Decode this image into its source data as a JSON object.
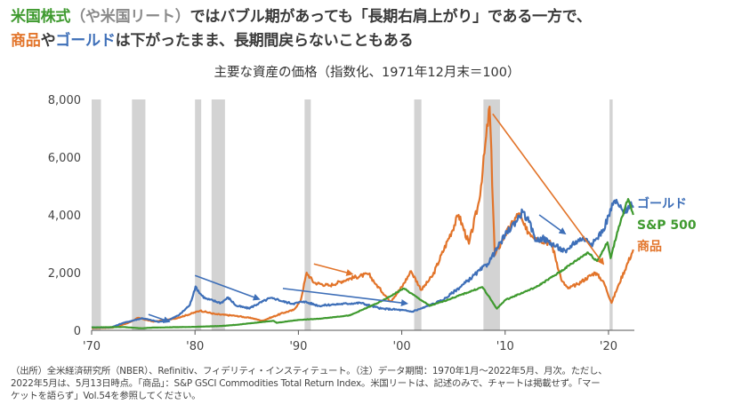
{
  "headline": {
    "line1_part1": "米国株式",
    "line1_part2": "（や米国リート）",
    "line1_part3": "ではバブル期があっても「長期右肩上がり」である一方で、",
    "line2_part1": "商品",
    "line2_part2": "や",
    "line2_part3": "ゴールド",
    "line2_part4": "は下がったまま、長期間戻らないこともある"
  },
  "colors": {
    "gold": "#3e6fb8",
    "sp500": "#3f9a2f",
    "commodity": "#e2742a",
    "recession": "#d3d3d3",
    "axis": "#555555"
  },
  "footnote": {
    "line1": "（出所）全米経済研究所（NBER）、Refinitiv、フィデリティ・インスティテュート。（注）データ期間：1970年1月～2022年5月、月次。ただし、",
    "line2": "2022年5月は、5月13日時点。「商品」：S&P GSCI Commodities Total Return Index。米国リートは、記述のみで、チャートは掲載せず。「マー",
    "line3": "ケットを語らず」Vol.54を参照してください。"
  },
  "chart_data": {
    "type": "line",
    "title": "主要な資産の価格（指数化、1971年12月末＝100）",
    "xlabel": "",
    "ylabel": "",
    "xlim": [
      1970,
      2022.5
    ],
    "ylim": [
      0,
      8000
    ],
    "y_ticks": [
      0,
      2000,
      4000,
      6000,
      8000
    ],
    "y_tick_labels": [
      "0",
      "2,000",
      "4,000",
      "6,000",
      "8,000"
    ],
    "x_ticks": [
      1970,
      1980,
      1990,
      2000,
      2010,
      2020
    ],
    "x_tick_labels": [
      "'70",
      "'80",
      "'90",
      "'00",
      "'10",
      "'20"
    ],
    "grid": false,
    "recessions": [
      [
        1970.0,
        1970.9
      ],
      [
        1973.9,
        1975.2
      ],
      [
        1980.0,
        1980.6
      ],
      [
        1981.6,
        1982.9
      ],
      [
        1990.6,
        1991.2
      ],
      [
        2001.2,
        2001.9
      ],
      [
        2007.9,
        2009.5
      ],
      [
        2020.1,
        2020.4
      ]
    ],
    "series": [
      {
        "name": "ゴールド",
        "key": "gold",
        "x": [
          1970,
          1971.9,
          1973,
          1974.9,
          1976.5,
          1977.5,
          1978.5,
          1979.5,
          1980.05,
          1980.5,
          1981,
          1982.5,
          1983.2,
          1984,
          1985.2,
          1986,
          1987.2,
          1987.9,
          1988.5,
          1989.5,
          1990.5,
          1992,
          1993.5,
          1996,
          1998,
          1999.5,
          2001,
          2002,
          2004,
          2006,
          2008.3,
          2009,
          2010,
          2011.7,
          2012.3,
          2013,
          2013.6,
          2015.9,
          2016.5,
          2017.5,
          2018.5,
          2019.5,
          2020.6,
          2021,
          2021.5,
          2022.1,
          2022.4
        ],
        "values": [
          100,
          100,
          250,
          420,
          290,
          360,
          540,
          880,
          1520,
          1270,
          1100,
          950,
          1140,
          850,
          760,
          900,
          1110,
          1080,
          1000,
          920,
          1000,
          850,
          900,
          950,
          750,
          720,
          650,
          770,
          1050,
          1600,
          2300,
          2700,
          3300,
          4100,
          3750,
          3100,
          3200,
          2700,
          3000,
          3200,
          3000,
          3500,
          4500,
          4300,
          4050,
          4400,
          4250
        ]
      },
      {
        "name": "S&P 500",
        "key": "sp500",
        "x": [
          1970,
          1973,
          1974.8,
          1976,
          1980,
          1982.5,
          1984,
          1987.6,
          1987.9,
          1990,
          1992,
          1995,
          1998,
          2000.2,
          2002.7,
          2004,
          2007.8,
          2009.2,
          2010,
          2013,
          2015,
          2018,
          2018.9,
          2019.9,
          2020.2,
          2021,
          2021.9,
          2022.4
        ],
        "values": [
          100,
          115,
          70,
          95,
          120,
          150,
          190,
          330,
          260,
          360,
          400,
          520,
          1000,
          1450,
          850,
          1000,
          1500,
          750,
          1050,
          1500,
          1950,
          2700,
          2400,
          3050,
          2500,
          3600,
          4550,
          4000
        ]
      },
      {
        "name": "商品",
        "key": "commodity",
        "x": [
          1970,
          1972,
          1973.5,
          1974.5,
          1976,
          1978,
          1979.5,
          1980.5,
          1982,
          1984,
          1985.5,
          1986.5,
          1988.5,
          1989.5,
          1990.2,
          1990.8,
          1991.5,
          1993,
          1995,
          1996.8,
          1997.5,
          1998.9,
          2000,
          2000.9,
          2001.9,
          2003,
          2005.5,
          2006.5,
          2007.5,
          2008.5,
          2009.0,
          2010,
          2011.3,
          2012,
          2013,
          2014.5,
          2015.5,
          2016.1,
          2017,
          2018.7,
          2019.5,
          2020.3,
          2021,
          2022.4
        ],
        "values": [
          80,
          90,
          250,
          430,
          300,
          400,
          560,
          680,
          560,
          500,
          420,
          330,
          600,
          700,
          1000,
          2000,
          1650,
          1550,
          1800,
          1950,
          1600,
          1000,
          1500,
          2050,
          1400,
          1900,
          4000,
          3000,
          4500,
          7750,
          2600,
          3300,
          4050,
          3500,
          3200,
          3000,
          1700,
          1450,
          1600,
          2000,
          1700,
          950,
          1600,
          2800
        ]
      }
    ],
    "legend": [
      {
        "label": "ゴールド",
        "key": "gold"
      },
      {
        "label": "S&P 500",
        "key": "sp500"
      },
      {
        "label": "商品",
        "key": "commodity"
      }
    ],
    "annotations": [
      {
        "type": "arrow",
        "color_key": "gold",
        "from": [
          1975.5,
          550
        ],
        "to": [
          1977.5,
          300
        ]
      },
      {
        "type": "arrow",
        "color_key": "gold",
        "from": [
          1980,
          1900
        ],
        "to": [
          1986.2,
          1080
        ]
      },
      {
        "type": "arrow",
        "color_key": "gold",
        "from": [
          1988.5,
          1450
        ],
        "to": [
          2000.5,
          930
        ]
      },
      {
        "type": "arrow",
        "color_key": "commodity",
        "from": [
          1991.5,
          2300
        ],
        "to": [
          1995.2,
          1950
        ]
      },
      {
        "type": "arrow",
        "color_key": "commodity",
        "from": [
          2008.8,
          7500
        ],
        "to": [
          2019.5,
          2300
        ]
      },
      {
        "type": "arrow",
        "color_key": "gold",
        "from": [
          2013.3,
          4000
        ],
        "to": [
          2015.8,
          3350
        ]
      }
    ]
  }
}
